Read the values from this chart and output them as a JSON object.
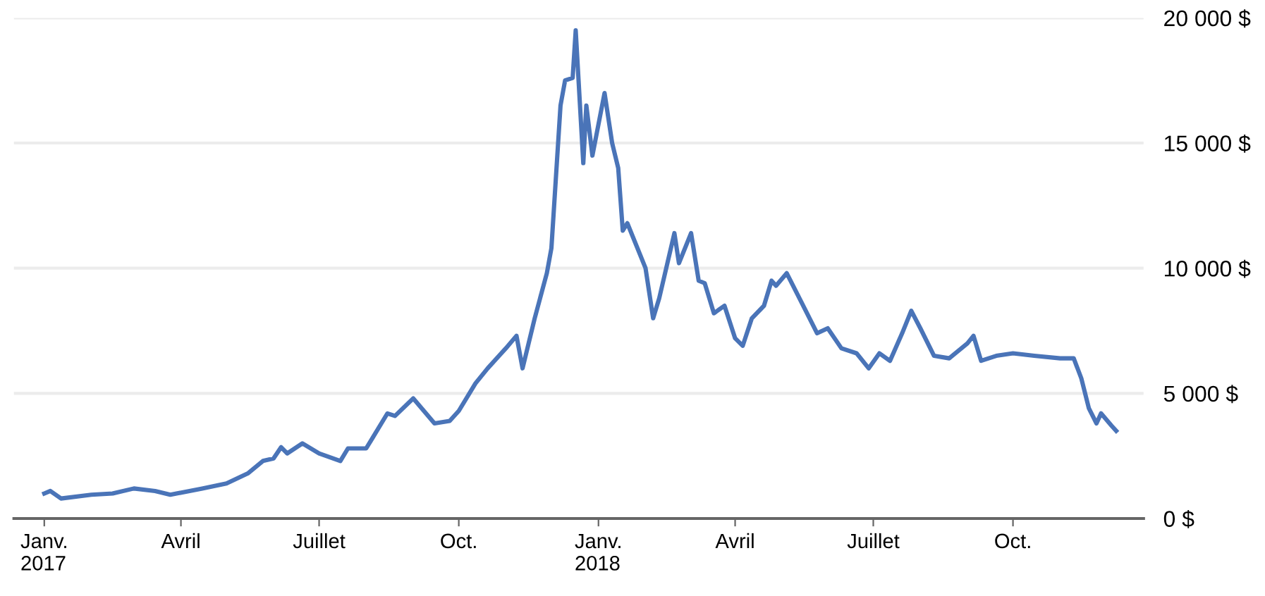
{
  "chart_data": {
    "type": "line",
    "x": [
      "2017-01-01",
      "2017-01-05",
      "2017-01-12",
      "2017-02-01",
      "2017-02-15",
      "2017-03-01",
      "2017-03-15",
      "2017-03-25",
      "2017-04-15",
      "2017-05-01",
      "2017-05-15",
      "2017-05-25",
      "2017-06-01",
      "2017-06-06",
      "2017-06-10",
      "2017-06-20",
      "2017-07-01",
      "2017-07-15",
      "2017-07-20",
      "2017-08-01",
      "2017-08-05",
      "2017-08-15",
      "2017-08-20",
      "2017-09-01",
      "2017-09-15",
      "2017-09-25",
      "2017-10-01",
      "2017-10-12",
      "2017-10-20",
      "2017-11-01",
      "2017-11-08",
      "2017-11-12",
      "2017-11-20",
      "2017-11-28",
      "2017-12-01",
      "2017-12-07",
      "2017-12-10",
      "2017-12-15",
      "2017-12-17",
      "2017-12-22",
      "2017-12-24",
      "2017-12-28",
      "2018-01-05",
      "2018-01-10",
      "2018-01-14",
      "2018-01-17",
      "2018-01-20",
      "2018-02-01",
      "2018-02-06",
      "2018-02-10",
      "2018-02-20",
      "2018-02-23",
      "2018-03-03",
      "2018-03-08",
      "2018-03-12",
      "2018-03-18",
      "2018-03-25",
      "2018-04-01",
      "2018-04-06",
      "2018-04-12",
      "2018-04-20",
      "2018-04-25",
      "2018-04-28",
      "2018-05-05",
      "2018-05-15",
      "2018-05-25",
      "2018-06-01",
      "2018-06-10",
      "2018-06-20",
      "2018-06-28",
      "2018-07-05",
      "2018-07-12",
      "2018-07-20",
      "2018-07-26",
      "2018-08-01",
      "2018-08-10",
      "2018-08-20",
      "2018-09-01",
      "2018-09-05",
      "2018-09-10",
      "2018-09-20",
      "2018-10-01",
      "2018-10-15",
      "2018-11-01",
      "2018-11-10",
      "2018-11-15",
      "2018-11-20",
      "2018-11-25",
      "2018-11-28",
      "2018-12-05",
      "2018-12-08"
    ],
    "series": [
      {
        "color": "#4a74b8",
        "values": [
          1000,
          1100,
          800,
          950,
          1000,
          1200,
          1100,
          950,
          1200,
          1400,
          1800,
          2300,
          2400,
          2850,
          2600,
          3000,
          2600,
          2300,
          2800,
          2800,
          3200,
          4200,
          4100,
          4800,
          3800,
          3900,
          4300,
          5400,
          6000,
          6800,
          7300,
          6000,
          8000,
          9800,
          10800,
          16500,
          17500,
          17600,
          19500,
          14200,
          16500,
          14500,
          17000,
          15000,
          14000,
          11500,
          11800,
          10000,
          8000,
          8800,
          11400,
          10200,
          11400,
          9500,
          9400,
          8200,
          8500,
          7200,
          6900,
          8000,
          8500,
          9500,
          9300,
          9800,
          8600,
          7400,
          7600,
          6800,
          6600,
          6000,
          6600,
          6300,
          7400,
          8300,
          7600,
          6500,
          6400,
          7000,
          7300,
          6300,
          6500,
          6600,
          6500,
          6400,
          6400,
          5600,
          4400,
          3800,
          4200,
          3700,
          3500
        ]
      }
    ],
    "xlim": [
      "2016-12-12",
      "2018-12-26"
    ],
    "xticks": [
      {
        "value": "2017-01-01",
        "label": "Janv.\n2017"
      },
      {
        "value": "2017-04-01",
        "label": "Avril"
      },
      {
        "value": "2017-07-01",
        "label": "Juillet"
      },
      {
        "value": "2017-10-01",
        "label": "Oct."
      },
      {
        "value": "2018-01-01",
        "label": "Janv.\n2018"
      },
      {
        "value": "2018-04-01",
        "label": "Avril"
      },
      {
        "value": "2018-07-01",
        "label": "Juillet"
      },
      {
        "value": "2018-10-01",
        "label": "Oct."
      }
    ],
    "ylim": [
      0,
      20000
    ],
    "yticks": [
      {
        "value": 0,
        "label": "0 $"
      },
      {
        "value": 5000,
        "label": "5 000 $"
      },
      {
        "value": 10000,
        "label": "10 000 $"
      },
      {
        "value": 15000,
        "label": "15 000 $"
      },
      {
        "value": 20000,
        "label": "20 000 $"
      }
    ],
    "grid": "y",
    "legend": false,
    "line_style": "solid",
    "marker": "none"
  }
}
